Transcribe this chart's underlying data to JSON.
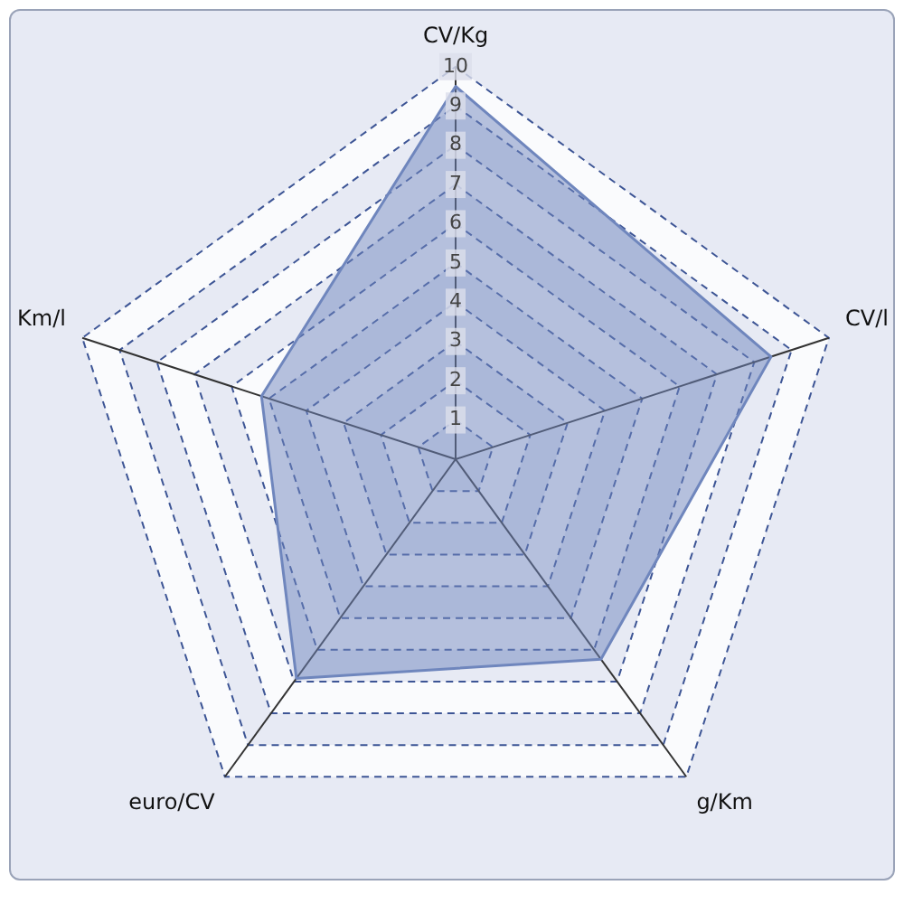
{
  "chart_data": {
    "type": "radar",
    "categories": [
      "CV/Kg",
      "CV/l",
      "g/Km",
      "euro/CV",
      "Km/l"
    ],
    "series": [
      {
        "color": "#6f86bd",
        "values": [
          9.5,
          8.45,
          6.3,
          6.9,
          5.2
        ]
      }
    ],
    "ylim": [
      0,
      10
    ],
    "yticks": [
      1,
      2,
      3,
      4,
      5,
      6,
      7,
      8,
      9,
      10
    ],
    "grid": true,
    "legend": false,
    "marker": "none",
    "line_style": "solid"
  }
}
